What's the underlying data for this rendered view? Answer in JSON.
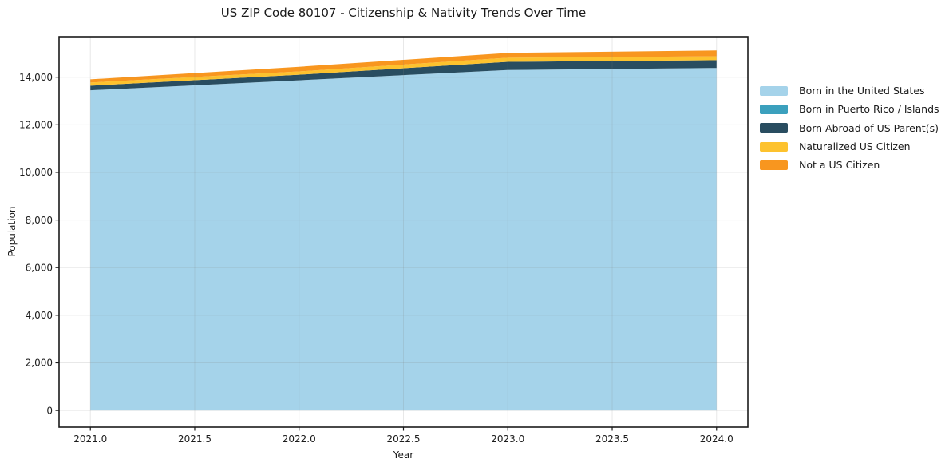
{
  "chart_data": {
    "type": "area",
    "stacked": true,
    "title": "US ZIP Code 80107 - Citizenship & Nativity Trends Over Time",
    "xlabel": "Year",
    "ylabel": "Population",
    "x": [
      2021,
      2022,
      2023,
      2024
    ],
    "series": [
      {
        "name": "Born in the United States",
        "color": "#a5d3ea",
        "values": [
          13450,
          13870,
          14300,
          14385
        ]
      },
      {
        "name": "Born in Puerto Rico / Islands",
        "color": "#3ba0bd",
        "values": [
          0,
          0,
          0,
          0
        ]
      },
      {
        "name": "Born Abroad of US Parent(s)",
        "color": "#294d60",
        "values": [
          190,
          235,
          345,
          330
        ]
      },
      {
        "name": "Naturalized US Citizen",
        "color": "#fdc22e",
        "values": [
          135,
          135,
          170,
          160
        ]
      },
      {
        "name": "Not a US Citizen",
        "color": "#f8961f",
        "values": [
          135,
          195,
          205,
          245
        ]
      }
    ],
    "totals": [
      13910,
      14435,
      15020,
      15120
    ],
    "xlim": [
      2020.85,
      2024.15
    ],
    "ylim": [
      -700,
      15700
    ],
    "xticks": [
      {
        "value": 2021.0,
        "label": "2021.0"
      },
      {
        "value": 2021.5,
        "label": "2021.5"
      },
      {
        "value": 2022.0,
        "label": "2022.0"
      },
      {
        "value": 2022.5,
        "label": "2022.5"
      },
      {
        "value": 2023.0,
        "label": "2023.0"
      },
      {
        "value": 2023.5,
        "label": "2023.5"
      },
      {
        "value": 2024.0,
        "label": "2024.0"
      }
    ],
    "yticks": [
      {
        "value": 0,
        "label": "0"
      },
      {
        "value": 2000,
        "label": "2,000"
      },
      {
        "value": 4000,
        "label": "4,000"
      },
      {
        "value": 6000,
        "label": "6,000"
      },
      {
        "value": 8000,
        "label": "8,000"
      },
      {
        "value": 10000,
        "label": "10,000"
      },
      {
        "value": 12000,
        "label": "12,000"
      },
      {
        "value": 14000,
        "label": "14,000"
      }
    ],
    "grid": true,
    "legend_position": "right of plot, no frame",
    "spine_color": "#1a1a1a",
    "grid_color": "#e5e5e5"
  }
}
